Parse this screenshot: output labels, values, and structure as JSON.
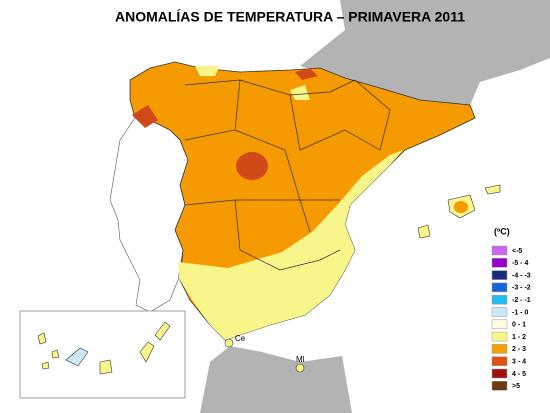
{
  "title": "ANOMALÍAS DE TEMPERATURA – PRIMAVERA 2011",
  "legend": {
    "unit": "(ºC)",
    "items": [
      {
        "label": "<-5",
        "color": "#cc66ee"
      },
      {
        "label": "-5 - 4",
        "color": "#9900cc"
      },
      {
        "label": "-4 - -3",
        "color": "#1a2a7e"
      },
      {
        "label": "-3 - -2",
        "color": "#1565d8"
      },
      {
        "label": "-2 - -1",
        "color": "#22bbee"
      },
      {
        "label": "-1 - 0",
        "color": "#cce8f8"
      },
      {
        "label": "0 - 1",
        "color": "#fffde0"
      },
      {
        "label": "1 - 2",
        "color": "#f8f58a"
      },
      {
        "label": "2 - 3",
        "color": "#f5a000"
      },
      {
        "label": "3 - 4",
        "color": "#e05010"
      },
      {
        "label": "4 - 5",
        "color": "#a01010"
      },
      {
        "label": ">5",
        "color": "#6b3a10"
      }
    ]
  },
  "places": {
    "ceuta": "Ce",
    "melilla": "Ml"
  }
}
